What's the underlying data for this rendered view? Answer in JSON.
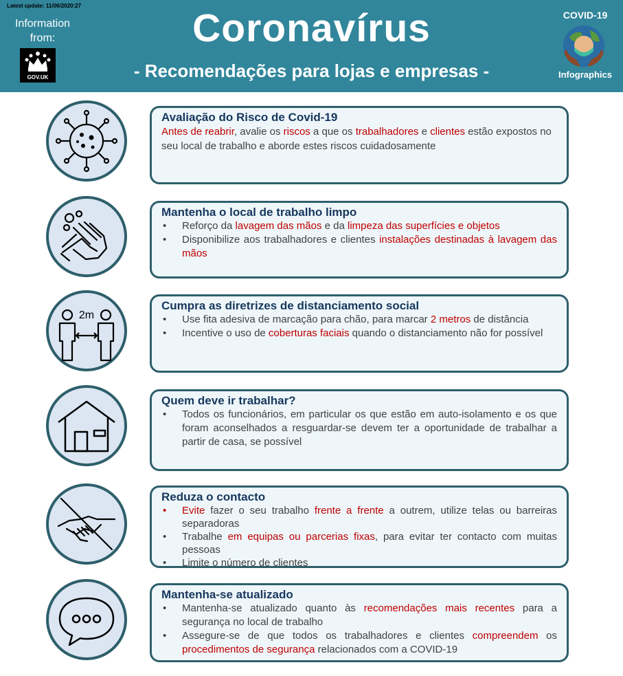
{
  "header": {
    "update": "Latest update: 11/06/2020:27",
    "info_from": "Information from:",
    "govuk": "GOV.UK",
    "title": "Coronavírus",
    "subtitle": "- Recomendações para lojas e empresas -",
    "covid_label": "COVID-19",
    "infographics": "Infographics"
  },
  "icons": [
    "virus-icon",
    "handwash-icon",
    "distance-icon",
    "house-icon",
    "handshake-icon",
    "chat-icon"
  ],
  "icon_text": {
    "distance": "2m"
  },
  "s1": {
    "title": "Avaliação do Risco de Covid-19",
    "t1": "Antes de reabrir",
    "t2": ", avalie os ",
    "t3": "riscos",
    "t4": " a que os ",
    "t5": "trabalhadores",
    "t6": " e ",
    "t7": "clientes",
    "t8": " estão expostos no seu local de trabalho e aborde estes riscos cuidadosamente"
  },
  "s2": {
    "title": "Mantenha o local de trabalho limpo",
    "b1a": "Reforço da ",
    "b1b": "lavagem das mãos",
    "b1c": " e da ",
    "b1d": "limpeza das superfícies e objetos",
    "b2a": "Disponibilize aos trabalhadores e clientes ",
    "b2b": "instalações destinadas à lavagem das mãos"
  },
  "s3": {
    "title": "Cumpra as diretrizes de distanciamento social",
    "b1a": "Use fita adesiva de marcação para chão, para marcar ",
    "b1b": "2 metros",
    "b1c": " de distância",
    "b2a": "Incentive o uso de ",
    "b2b": "coberturas faciais",
    "b2c": " quando o distanciamento não for possível"
  },
  "s4": {
    "title": "Quem deve ir trabalhar?",
    "b1": "Todos os funcionários, em particular os que estão em auto-isolamento e os que foram aconselhados a resguardar-se devem ter a oportunidade de trabalhar a partir de casa, se possível"
  },
  "s5": {
    "title": "Reduza o contacto",
    "b1a": "Evite",
    "b1b": " fazer o seu trabalho ",
    "b1c": "frente a frente",
    "b1d": " a outrem, utilize telas ou barreiras separadoras",
    "b2a": "Trabalhe ",
    "b2b": "em equipas ou parcerias fixas",
    "b2c": ", para evitar ter contacto com muitas pessoas",
    "b3": "Limite o número de clientes"
  },
  "s6": {
    "title": "Mantenha-se atualizado",
    "b1a": "Mantenha-se atualizado quanto às ",
    "b1b": "recomendações mais recentes",
    "b1c": " para a segurança no local de trabalho",
    "b2a": "Assegure-se de que todos os trabalhadores e clientes ",
    "b2b": "compreendem",
    "b2c": " os ",
    "b2d": "procedimentos de segurança",
    "b2e": " relacionados com a COVID-19"
  }
}
